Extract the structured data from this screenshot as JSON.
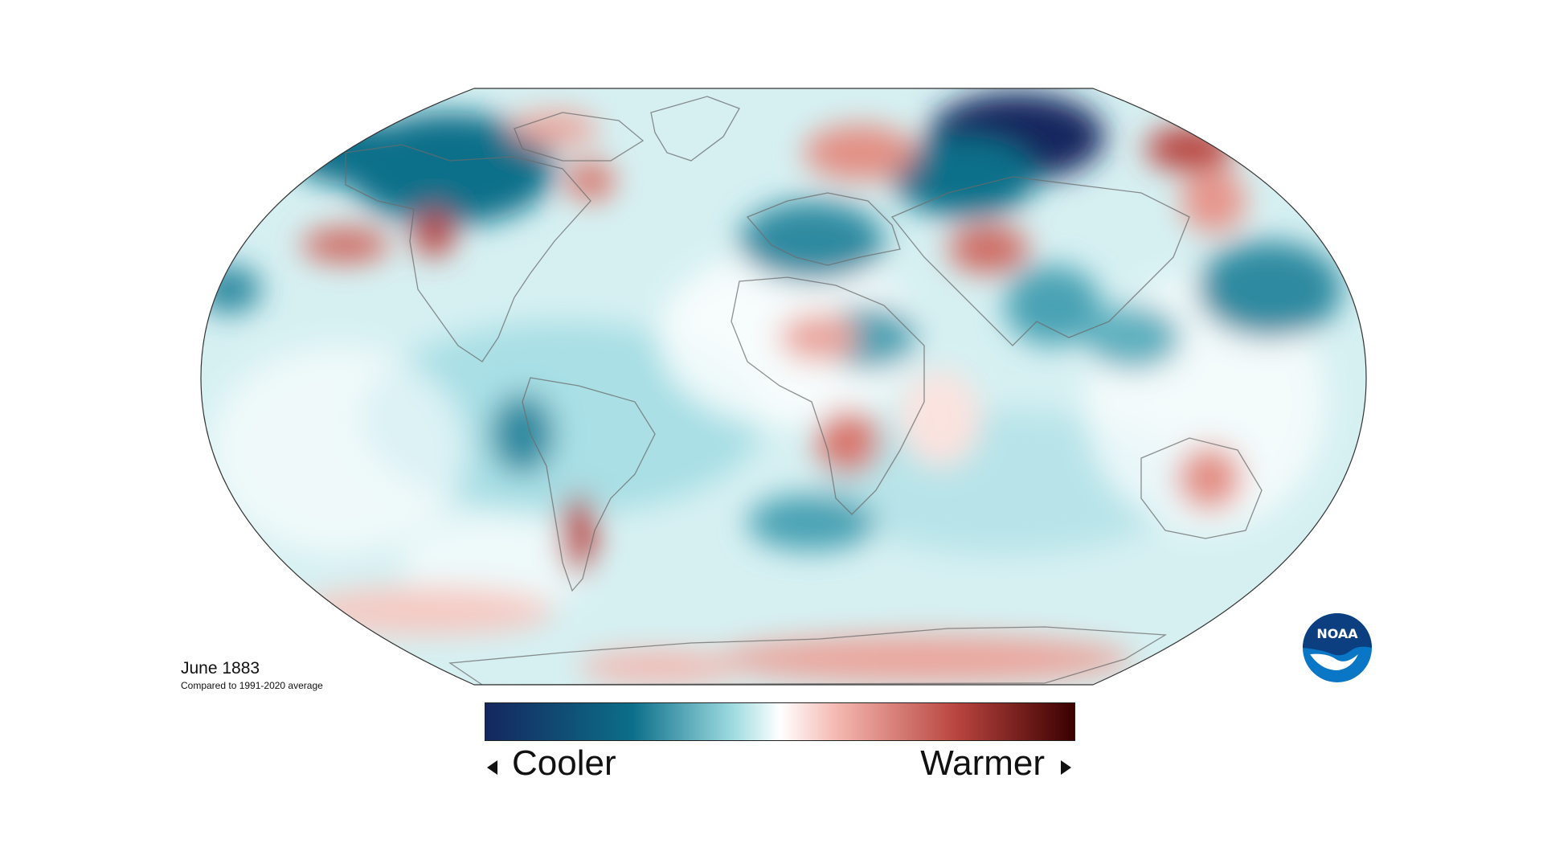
{
  "map": {
    "title": "June 1883",
    "subtitle": "Compared to 1991-2020 average",
    "projection": "robinson",
    "anomaly_regions": [
      {
        "region": "Arctic / Siberia",
        "sign": "cooler",
        "strength": "strong"
      },
      {
        "region": "Chukchi / Bering",
        "sign": "warmer",
        "strength": "strong"
      },
      {
        "region": "Northeast Pacific",
        "sign": "warmer",
        "strength": "moderate"
      },
      {
        "region": "Western North America",
        "sign": "warmer",
        "strength": "strong"
      },
      {
        "region": "Hudson Bay",
        "sign": "warmer",
        "strength": "moderate"
      },
      {
        "region": "Scandinavia / Western Russia",
        "sign": "warmer",
        "strength": "moderate"
      },
      {
        "region": "Central Asia",
        "sign": "warmer",
        "strength": "moderate"
      },
      {
        "region": "Europe",
        "sign": "cooler",
        "strength": "moderate"
      },
      {
        "region": "Southern Africa",
        "sign": "warmer",
        "strength": "moderate"
      },
      {
        "region": "Australia",
        "sign": "warmer",
        "strength": "moderate"
      },
      {
        "region": "Patagonia",
        "sign": "warmer",
        "strength": "moderate"
      },
      {
        "region": "Antarctica",
        "sign": "warmer",
        "strength": "mixed"
      }
    ]
  },
  "legend": {
    "cooler_label": "Cooler",
    "warmer_label": "Warmer",
    "colors": [
      "#14275e",
      "#0c6f8a",
      "#9edbe0",
      "#ffffff",
      "#f3b6ae",
      "#b9443f",
      "#3a0000"
    ]
  },
  "logo": {
    "text": "NOAA",
    "icon": "noaa-logo-icon"
  }
}
